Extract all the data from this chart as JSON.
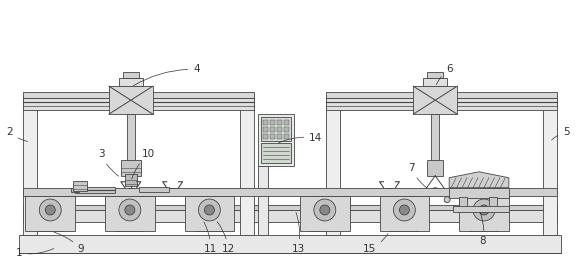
{
  "bg_color": "#ffffff",
  "lc": "#444444",
  "lc2": "#666666",
  "fc_frame": "#f0f0f0",
  "fc_beam": "#e0e0e0",
  "fc_carriage": "#d8d8d8",
  "fc_block": "#d0d0d0",
  "fc_base": "#e8e8e8",
  "fig_width": 5.8,
  "fig_height": 2.62
}
